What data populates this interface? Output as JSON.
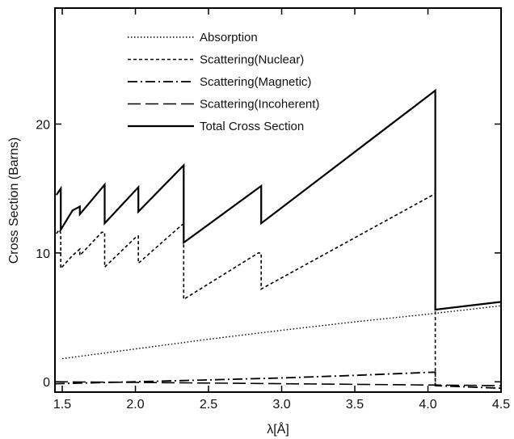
{
  "chart_data": {
    "type": "line",
    "title": "",
    "xlabel": "λ[Å]",
    "ylabel": "Cross Section (Barns)",
    "xlim": [
      1.45,
      4.5
    ],
    "ylim": [
      -0.8,
      29
    ],
    "x_ticks": [
      1.5,
      2.0,
      2.5,
      3.0,
      3.5,
      4.0,
      4.5
    ],
    "y_ticks": [
      0,
      10,
      20
    ],
    "grid": false,
    "legend": {
      "position": "top-center"
    },
    "series": [
      {
        "name": "Absorption",
        "style": "dotted",
        "x": [
          1.5,
          2.0,
          2.5,
          3.0,
          3.5,
          4.0,
          4.5
        ],
        "y": [
          1.8,
          2.55,
          3.3,
          4.0,
          4.65,
          5.25,
          5.9
        ]
      },
      {
        "name": "Scattering(Nuclear)",
        "style": "dashed",
        "x": [
          1.46,
          1.48,
          1.49,
          1.49,
          1.57,
          1.62,
          1.62,
          1.77,
          1.79,
          1.79,
          2.01,
          2.02,
          2.02,
          2.32,
          2.33,
          2.33,
          2.84,
          2.86,
          2.86,
          4.05,
          4.05
        ],
        "y": [
          11.5,
          11.8,
          11.5,
          8.8,
          9.8,
          10.3,
          9.8,
          11.6,
          11.6,
          8.9,
          11.3,
          11.3,
          9.2,
          12.2,
          12.2,
          6.4,
          10.0,
          10.0,
          7.2,
          14.6,
          0.0
        ]
      },
      {
        "name": "Scattering(Magnetic)",
        "style": "dash-dot",
        "x": [
          1.45,
          2.0,
          2.5,
          3.0,
          3.5,
          4.05,
          4.05,
          4.5
        ],
        "y": [
          -0.15,
          0.0,
          0.15,
          0.3,
          0.5,
          0.75,
          -0.3,
          -0.5
        ]
      },
      {
        "name": "Scattering(Incoherent)",
        "style": "long-dash",
        "x": [
          1.45,
          2.0,
          2.5,
          3.0,
          3.5,
          4.0,
          4.5
        ],
        "y": [
          0.0,
          -0.05,
          -0.1,
          -0.15,
          -0.2,
          -0.25,
          -0.3
        ]
      },
      {
        "name": "Total Cross Section",
        "style": "solid",
        "x": [
          1.46,
          1.49,
          1.49,
          1.49,
          1.57,
          1.62,
          1.62,
          1.79,
          1.79,
          2.02,
          2.02,
          2.33,
          2.33,
          2.86,
          2.86,
          4.05,
          4.05,
          4.5
        ],
        "y": [
          14.5,
          15.0,
          11.8,
          11.8,
          13.3,
          13.6,
          13.0,
          15.3,
          12.3,
          15.1,
          13.2,
          16.8,
          10.8,
          15.2,
          12.3,
          22.6,
          5.6,
          6.2
        ]
      }
    ]
  }
}
